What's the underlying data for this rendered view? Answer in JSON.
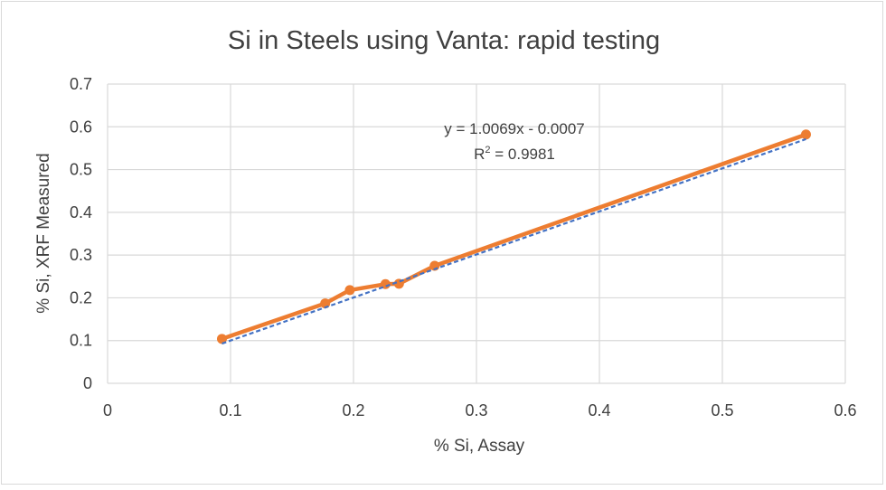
{
  "chart_data": {
    "type": "scatter",
    "title": "Si in Steels using Vanta: rapid testing",
    "xlabel": "% Si, Assay",
    "ylabel": "% Si, XRF Measured",
    "xlim": [
      0,
      0.6
    ],
    "ylim": [
      0,
      0.7
    ],
    "x_ticks": [
      "0",
      "0.1",
      "0.2",
      "0.3",
      "0.4",
      "0.5",
      "0.6"
    ],
    "y_ticks": [
      "0",
      "0.1",
      "0.2",
      "0.3",
      "0.4",
      "0.5",
      "0.6",
      "0.7"
    ],
    "grid": true,
    "legend": "none",
    "series": [
      {
        "marker_color": "#ed7d31",
        "line_color": "#ed7d31",
        "x": [
          0.093,
          0.177,
          0.197,
          0.226,
          0.237,
          0.266,
          0.568
        ],
        "y": [
          0.104,
          0.187,
          0.218,
          0.232,
          0.233,
          0.275,
          0.582
        ]
      }
    ],
    "trendline": {
      "slope": 1.0069,
      "intercept": -0.0007,
      "color": "#4472c4",
      "style": "dashed",
      "equation": "y = 1.0069x - 0.0007",
      "r2_prefix": "R",
      "r2_exp": "2",
      "r2_suffix": " = 0.9981"
    }
  }
}
